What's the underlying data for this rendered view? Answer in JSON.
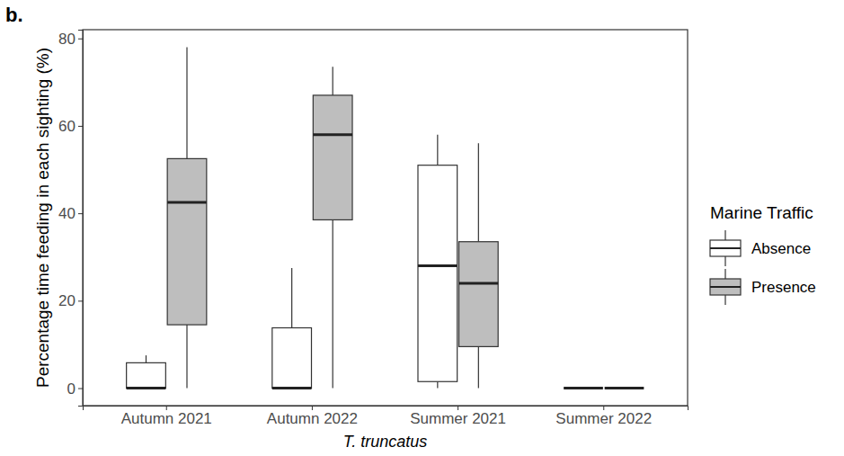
{
  "chart_data": {
    "type": "box",
    "title": "b.",
    "x_label": "T. truncatus",
    "y_label": "Percentage time feeding in each sighting (%)",
    "categories": [
      "Autumn 2021",
      "Autumn 2022",
      "Summer 2021",
      "Summer 2022"
    ],
    "series": [
      {
        "name": "Absence",
        "color": "#ffffff",
        "min": [
          0,
          0,
          0,
          0
        ],
        "q1": [
          0,
          0,
          1.5,
          0
        ],
        "median": [
          0,
          0,
          28,
          0
        ],
        "q3": [
          5.8,
          13.8,
          51,
          0
        ],
        "max": [
          7.5,
          27.5,
          58,
          0
        ]
      },
      {
        "name": "Presence",
        "color": "#bebebe",
        "min": [
          0,
          0,
          0,
          0
        ],
        "q1": [
          14.5,
          38.5,
          9.5,
          0
        ],
        "median": [
          42.5,
          58,
          24,
          0
        ],
        "q3": [
          52.5,
          67,
          33.5,
          0
        ],
        "max": [
          78,
          73.5,
          56,
          0
        ]
      }
    ],
    "ylim": [
      -4,
      82
    ],
    "yticks": [
      0,
      20,
      40,
      60,
      80
    ],
    "legend": "right",
    "legend_title": "Marine Traffic",
    "grid": false
  }
}
